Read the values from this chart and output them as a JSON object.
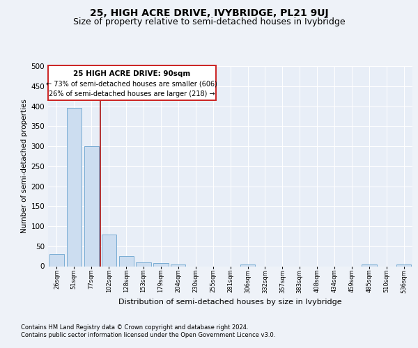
{
  "title": "25, HIGH ACRE DRIVE, IVYBRIDGE, PL21 9UJ",
  "subtitle": "Size of property relative to semi-detached houses in Ivybridge",
  "xlabel": "Distribution of semi-detached houses by size in Ivybridge",
  "ylabel": "Number of semi-detached properties",
  "bar_labels": [
    "26sqm",
    "51sqm",
    "77sqm",
    "102sqm",
    "128sqm",
    "153sqm",
    "179sqm",
    "204sqm",
    "230sqm",
    "255sqm",
    "281sqm",
    "306sqm",
    "332sqm",
    "357sqm",
    "383sqm",
    "408sqm",
    "434sqm",
    "459sqm",
    "485sqm",
    "510sqm",
    "536sqm"
  ],
  "bar_values": [
    30,
    395,
    300,
    80,
    25,
    10,
    8,
    4,
    0,
    0,
    0,
    5,
    0,
    0,
    0,
    0,
    0,
    0,
    4,
    0,
    4
  ],
  "bar_color": "#ccddf0",
  "bar_edge_color": "#7aadd4",
  "red_line_x": 2.5,
  "red_line_label": "25 HIGH ACRE DRIVE: 90sqm",
  "annotation_line1": "← 73% of semi-detached houses are smaller (606)",
  "annotation_line2": "26% of semi-detached houses are larger (218) →",
  "ylim": [
    0,
    500
  ],
  "yticks": [
    0,
    50,
    100,
    150,
    200,
    250,
    300,
    350,
    400,
    450,
    500
  ],
  "footer1": "Contains HM Land Registry data © Crown copyright and database right 2024.",
  "footer2": "Contains public sector information licensed under the Open Government Licence v3.0.",
  "bg_color": "#eef2f8",
  "plot_bg_color": "#e8eef7",
  "grid_color": "#ffffff",
  "title_fontsize": 10,
  "subtitle_fontsize": 9,
  "ylabel_fontsize": 7.5,
  "xlabel_fontsize": 8,
  "annotation_box_color": "#ffffff",
  "annotation_box_edge": "#cc2222",
  "ann_title_fontsize": 7.5,
  "ann_text_fontsize": 7
}
